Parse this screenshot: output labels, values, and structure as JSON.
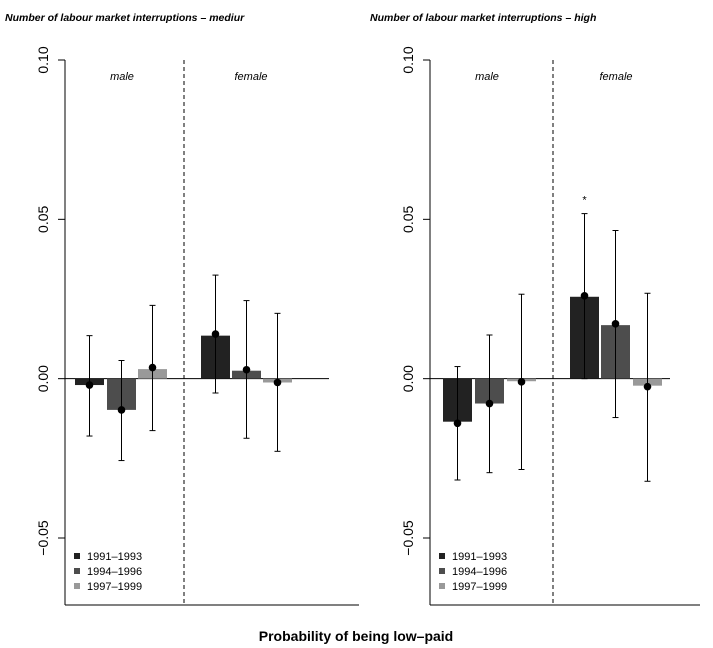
{
  "xlabel": "Probability of being low–paid",
  "legend": [
    {
      "label": "1991–1993",
      "color": "#222222"
    },
    {
      "label": "1994–1996",
      "color": "#4d4d4d"
    },
    {
      "label": "1997–1999",
      "color": "#999999"
    }
  ],
  "chart_data": [
    {
      "type": "bar",
      "title": "Number of labour market interruptions – mediur",
      "ylim": [
        -0.06,
        0.1
      ],
      "yticks": [
        {
          "value": -0.05,
          "label": "−0.05"
        },
        {
          "value": 0.0,
          "label": "0.00"
        },
        {
          "value": 0.05,
          "label": "0.05"
        },
        {
          "value": 0.1,
          "label": "0.10"
        }
      ],
      "groups": [
        "male",
        "female"
      ],
      "series": [
        {
          "name": "1991–1993",
          "values": [
            -0.002,
            0.0135
          ],
          "points": [
            -0.002,
            0.014
          ],
          "ci_low": [
            -0.018,
            -0.0045
          ],
          "ci_high": [
            0.0135,
            0.0325
          ],
          "sig": [
            "",
            ""
          ]
        },
        {
          "name": "1994–1996",
          "values": [
            -0.0098,
            0.0025
          ],
          "points": [
            -0.0098,
            0.0028
          ],
          "ci_low": [
            -0.0257,
            -0.0187
          ],
          "ci_high": [
            0.0057,
            0.0245
          ],
          "sig": [
            "",
            ""
          ]
        },
        {
          "name": "1997–1999",
          "values": [
            0.003,
            -0.0012
          ],
          "points": [
            0.0035,
            -0.0012
          ],
          "ci_low": [
            -0.0163,
            -0.0228
          ],
          "ci_high": [
            0.023,
            0.0205
          ],
          "sig": [
            "",
            ""
          ]
        }
      ]
    },
    {
      "type": "bar",
      "title": "Number of labour market interruptions – high",
      "ylim": [
        -0.06,
        0.1
      ],
      "yticks": [
        {
          "value": -0.05,
          "label": "−0.05"
        },
        {
          "value": 0.0,
          "label": "0.00"
        },
        {
          "value": 0.05,
          "label": "0.05"
        },
        {
          "value": 0.1,
          "label": "0.10"
        }
      ],
      "groups": [
        "male",
        "female"
      ],
      "series": [
        {
          "name": "1991–1993",
          "values": [
            -0.0135,
            0.0257
          ],
          "points": [
            -0.014,
            0.026
          ],
          "ci_low": [
            -0.0318,
            0.0
          ],
          "ci_high": [
            0.0038,
            0.0518
          ],
          "sig": [
            "",
            "*"
          ]
        },
        {
          "name": "1994–1996",
          "values": [
            -0.0078,
            0.0168
          ],
          "points": [
            -0.0078,
            0.0172
          ],
          "ci_low": [
            -0.0295,
            -0.0122
          ],
          "ci_high": [
            0.0137,
            0.0465
          ],
          "sig": [
            "",
            ""
          ]
        },
        {
          "name": "1997–1999",
          "values": [
            -0.0008,
            -0.0022
          ],
          "points": [
            -0.001,
            -0.0025
          ],
          "ci_low": [
            -0.0285,
            -0.0322
          ],
          "ci_high": [
            0.0265,
            0.0268
          ],
          "sig": [
            "",
            ""
          ]
        }
      ]
    }
  ]
}
